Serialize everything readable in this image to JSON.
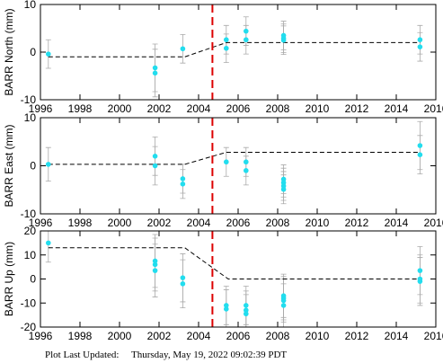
{
  "chart_data": [
    {
      "type": "scatter",
      "ylabel": "BARR North (mm)",
      "xlim": [
        1996,
        2016
      ],
      "xticks": [
        1996,
        1998,
        2000,
        2002,
        2004,
        2006,
        2008,
        2010,
        2012,
        2014,
        2016
      ],
      "ylim": [
        -10,
        10
      ],
      "yticks": [
        -10,
        0,
        10
      ],
      "point_color": "#22ddee",
      "error_color": "#aaaaaa",
      "model_color": "#000000",
      "event_color": "#dd0000",
      "points": {
        "x": [
          1996.4,
          2001.8,
          2001.8,
          2003.2,
          2005.4,
          2005.4,
          2006.4,
          2006.4,
          2008.3,
          2008.3,
          2008.3,
          2015.2,
          2015.2
        ],
        "values": [
          -0.4,
          -3.3,
          -4.4,
          0.7,
          2.6,
          0.8,
          4.4,
          2.6,
          3.5,
          2.9,
          2.5,
          2.6,
          1.1
        ],
        "errors": [
          3,
          5,
          5,
          3,
          3,
          3,
          3,
          3,
          3,
          3,
          3,
          3,
          3
        ]
      },
      "model": {
        "x": [
          1996.4,
          2003.3,
          2005.4,
          2015.2
        ],
        "values": [
          -1,
          -1,
          2,
          2
        ]
      },
      "event_x": 2004.7
    },
    {
      "type": "scatter",
      "ylabel": "BARR East (mm)",
      "xlim": [
        1996,
        2016
      ],
      "xticks": [
        1996,
        1998,
        2000,
        2002,
        2004,
        2006,
        2008,
        2010,
        2012,
        2014,
        2016
      ],
      "ylim": [
        -10,
        10
      ],
      "yticks": [
        -10,
        0,
        10
      ],
      "point_color": "#22ddee",
      "error_color": "#aaaaaa",
      "model_color": "#000000",
      "event_color": "#dd0000",
      "points": {
        "x": [
          1996.4,
          2001.8,
          2001.8,
          2003.2,
          2003.2,
          2005.4,
          2006.4,
          2006.4,
          2008.3,
          2008.3,
          2008.3,
          2008.3,
          2015.2,
          2015.2
        ],
        "values": [
          0.3,
          2.0,
          0.0,
          -2.7,
          -3.8,
          0.8,
          0.8,
          -1.0,
          -2.8,
          -3.5,
          -4.2,
          -4.9,
          4.2,
          2.3
        ],
        "errors": [
          3.5,
          4,
          4,
          3,
          3,
          3,
          3,
          3,
          3,
          3,
          3,
          3,
          5,
          4
        ]
      },
      "model": {
        "x": [
          1996.4,
          2003.3,
          2005.4,
          2015.2
        ],
        "values": [
          0.3,
          0.3,
          2.8,
          2.8
        ]
      },
      "event_x": 2004.7
    },
    {
      "type": "scatter",
      "ylabel": "BARR Up (mm)",
      "xlim": [
        1996,
        2016
      ],
      "xticks": [
        1996,
        1998,
        2000,
        2002,
        2004,
        2006,
        2008,
        2010,
        2012,
        2014,
        2016
      ],
      "ylim": [
        -20,
        20
      ],
      "yticks": [
        -20,
        -10,
        0,
        10,
        20
      ],
      "point_color": "#22ddee",
      "error_color": "#aaaaaa",
      "model_color": "#000000",
      "event_color": "#dd0000",
      "points": {
        "x": [
          1996.4,
          2001.8,
          2001.8,
          2001.8,
          2003.2,
          2003.2,
          2005.4,
          2005.4,
          2006.4,
          2006.4,
          2006.4,
          2008.3,
          2008.3,
          2008.3,
          2008.3,
          2015.2,
          2015.2,
          2015.2
        ],
        "values": [
          15,
          7.5,
          6,
          3.5,
          0.5,
          -2,
          -11,
          -12.5,
          -11,
          -13,
          -14.5,
          -7,
          -8,
          -9,
          -11,
          3.5,
          0,
          -1
        ],
        "errors": [
          8,
          11,
          11,
          11,
          10,
          10,
          8,
          8,
          8,
          8,
          8,
          9,
          9,
          9,
          9,
          10,
          10,
          10
        ]
      },
      "model": {
        "x": [
          1996.4,
          2003.3,
          2005.5,
          2015.2
        ],
        "values": [
          13,
          13,
          0,
          0
        ]
      },
      "event_x": 2004.7
    }
  ],
  "footer": {
    "label": "Plot Last Updated:",
    "date": "Thursday, May 19, 2022 09:02:39 PDT"
  }
}
